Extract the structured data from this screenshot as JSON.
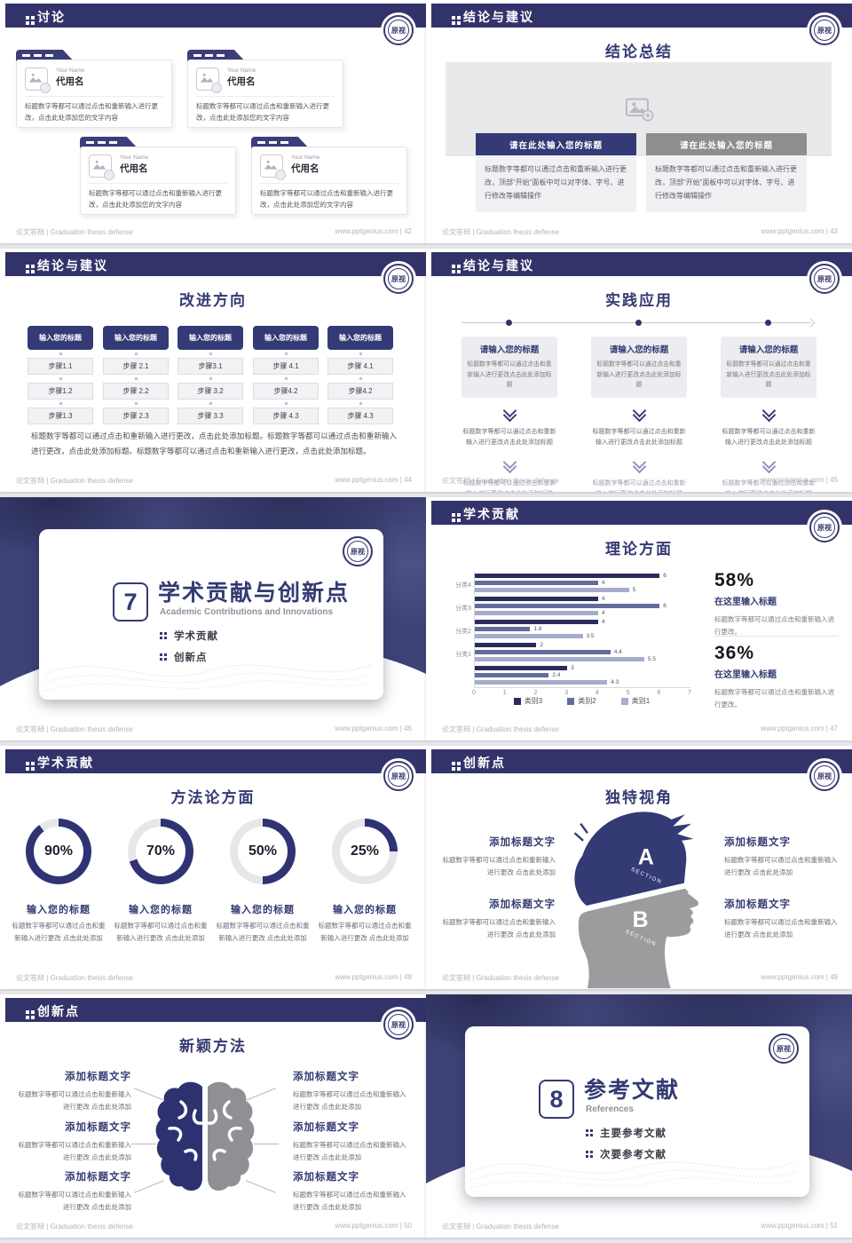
{
  "footer": {
    "left": "论文答辩 | Graduation thesis defense"
  },
  "logo": {
    "text": "原视"
  },
  "colors": {
    "navy": "#33336b",
    "donut_track": "#e7e7ea"
  },
  "slides": {
    "s42": {
      "header": "讨论",
      "footer_right": "www.pptgenius.com | 42",
      "card": {
        "name_en": "Your Name",
        "name": "代用名",
        "body": "标题数字等都可以通过点击和重新输入进行更改，点击此处添加您的文字内容"
      }
    },
    "s43": {
      "header": "结论与建议",
      "footer_right": "www.pptgenius.com | 43",
      "title": "结论总结",
      "bar_label": "请在此处输入您的标题",
      "body": "标题数字等都可以通过点击和重新输入进行更改，顶部“开始”面板中可以对字体、字号、进行修改等编辑操作"
    },
    "s44": {
      "header": "结论与建议",
      "footer_right": "www.pptgenius.com | 44",
      "title": "改进方向",
      "col_title": "输入您的标题",
      "columns": [
        [
          "步骤1.1",
          "步骤1.2",
          "步骤1.3"
        ],
        [
          "步骤 2.1",
          "步骤 2.2",
          "步骤 2.3"
        ],
        [
          "步骤3.1",
          "步骤 3.2",
          "步骤 3.3"
        ],
        [
          "步骤 4.1",
          "步骤4.2",
          "步骤 4.3"
        ],
        [
          "步骤 4.1",
          "步骤4.2",
          "步骤 4.3"
        ]
      ],
      "paragraph": "标题数字等都可以通过点击和重新输入进行更改，点击此处添加标题。标题数字等都可以通过点击和重新输入进行更改，点击此处添加标题。标题数字等都可以通过点击和重新输入进行更改，点击此处添加标题。"
    },
    "s45": {
      "header": "结论与建议",
      "footer_right": "www.pptgenius.com | 45",
      "title": "实践应用",
      "col_title": "请输入您的标题",
      "col_body": "标题数字等都可以通过点击和重新输入进行更改点击此处添加标题"
    },
    "s46": {
      "footer_right": "www.pptgenius.com | 46",
      "number": "7",
      "title": "学术贡献与创新点",
      "subtitle": "Academic Contributions and Innovations",
      "bullets": [
        "学术贡献",
        "创新点"
      ]
    },
    "s47": {
      "header": "学术贡献",
      "footer_right": "www.pptgenius.com | 47",
      "title": "理论方面",
      "stats": [
        {
          "pct": "58%",
          "title": "在这里输入标题",
          "body": "标题数字等都可以通过点击和重新输入进行更改。"
        },
        {
          "pct": "36%",
          "title": "在这里输入标题",
          "body": "标题数字等都可以通过点击和重新输入进行更改。"
        }
      ]
    },
    "s48": {
      "header": "学术贡献",
      "footer_right": "www.pptgenius.com | 48",
      "title": "方法论方面",
      "donuts": [
        {
          "pct": 90,
          "label": "90%"
        },
        {
          "pct": 70,
          "label": "70%"
        },
        {
          "pct": 50,
          "label": "50%"
        },
        {
          "pct": 25,
          "label": "25%"
        }
      ],
      "item_title": "输入您的标题",
      "item_body": "标题数字等都可以通过点击和重新输入进行更改 点击此处添加"
    },
    "s49": {
      "header": "创新点",
      "footer_right": "www.pptgenius.com | 49",
      "title": "独特视角",
      "section_a": "A",
      "section_b": "B",
      "section_word": "SECTION",
      "item_title": "添加标题文字",
      "item_body": "标题数字等都可以通过点击和重新输入进行更改 点击此处添加"
    },
    "s50": {
      "header": "创新点",
      "footer_right": "www.pptgenius.com | 50",
      "title": "新颖方法",
      "item_title": "添加标题文字",
      "item_body": "标题数字等都可以通过点击和重新输入进行更改 点击此处添加"
    },
    "s51": {
      "footer_right": "www.pptgenius.com | 51",
      "number": "8",
      "title": "参考文献",
      "subtitle": "References",
      "bullets": [
        "主要参考文献",
        "次要参考文献"
      ]
    }
  },
  "chart_data": {
    "type": "bar",
    "orientation": "horizontal",
    "title": "理论方面",
    "categories": [
      "分类4",
      "分类3",
      "分类2",
      "分类1",
      ""
    ],
    "series": [
      {
        "name": "类别3",
        "color": "#2a2c5e",
        "values": [
          6,
          4,
          4,
          2,
          3
        ]
      },
      {
        "name": "类别2",
        "color": "#646b9d",
        "values": [
          4,
          6,
          1.8,
          4.4,
          2.4
        ]
      },
      {
        "name": "类别1",
        "color": "#a6adcc",
        "values": [
          5,
          4,
          3.5,
          5.5,
          4.3
        ]
      }
    ],
    "xlim": [
      0,
      7
    ],
    "xticks": [
      0,
      1,
      2,
      3,
      4,
      5,
      6,
      7
    ],
    "grid": false,
    "legend_position": "bottom"
  }
}
